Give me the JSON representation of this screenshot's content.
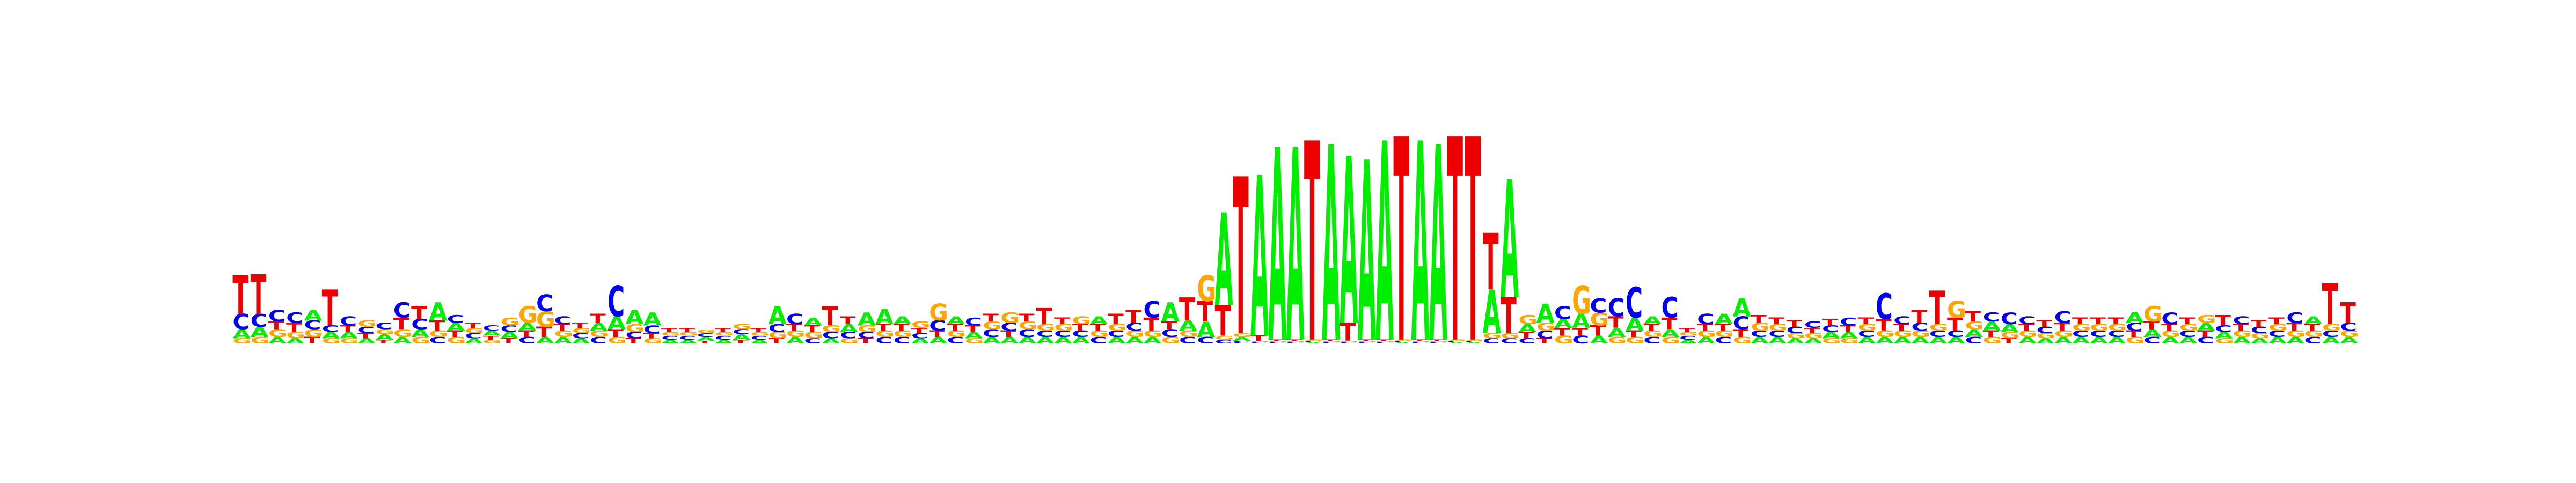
{
  "logo": {
    "colors": {
      "A": "#00ee00",
      "C": "#0000ee",
      "G": "#ffa500",
      "T": "#ee0000"
    },
    "letter_order": [
      "A",
      "C",
      "G",
      "T"
    ],
    "max_bits": 2,
    "positions": [
      {
        "A": 0.07,
        "C": 0.12,
        "G": 0.04,
        "T": 0.3
      },
      {
        "A": 0.08,
        "C": 0.1,
        "G": 0.05,
        "T": 0.31
      },
      {
        "A": 0.05,
        "C": 0.09,
        "G": 0.06,
        "T": 0.06
      },
      {
        "A": 0.04,
        "C": 0.08,
        "G": 0.05,
        "T": 0.07
      },
      {
        "A": 0.08,
        "C": 0.07,
        "G": 0.06,
        "T": 0.05
      },
      {
        "A": 0.05,
        "C": 0.05,
        "G": 0.04,
        "T": 0.28
      },
      {
        "A": 0.05,
        "C": 0.07,
        "G": 0.04,
        "T": 0.05
      },
      {
        "A": 0.04,
        "C": 0.05,
        "G": 0.05,
        "T": 0.04
      },
      {
        "A": 0.04,
        "C": 0.05,
        "G": 0.04,
        "T": 0.03
      },
      {
        "A": 0.05,
        "C": 0.12,
        "G": 0.06,
        "T": 0.09
      },
      {
        "A": 0.06,
        "C": 0.08,
        "G": 0.05,
        "T": 0.1
      },
      {
        "A": 0.14,
        "C": 0.05,
        "G": 0.05,
        "T": 0.08
      },
      {
        "A": 0.06,
        "C": 0.06,
        "G": 0.05,
        "T": 0.05
      },
      {
        "A": 0.04,
        "C": 0.04,
        "G": 0.04,
        "T": 0.04
      },
      {
        "A": 0.04,
        "C": 0.04,
        "G": 0.03,
        "T": 0.03
      },
      {
        "A": 0.05,
        "C": 0.05,
        "G": 0.06,
        "T": 0.04
      },
      {
        "A": 0.06,
        "C": 0.05,
        "G": 0.13,
        "T": 0.05
      },
      {
        "A": 0.05,
        "C": 0.13,
        "G": 0.12,
        "T": 0.08
      },
      {
        "A": 0.05,
        "C": 0.06,
        "G": 0.05,
        "T": 0.05
      },
      {
        "A": 0.04,
        "C": 0.04,
        "G": 0.04,
        "T": 0.04
      },
      {
        "A": 0.06,
        "C": 0.05,
        "G": 0.05,
        "T": 0.07
      },
      {
        "A": 0.1,
        "C": 0.24,
        "G": 0.05,
        "T": 0.06
      },
      {
        "A": 0.11,
        "C": 0.05,
        "G": 0.06,
        "T": 0.04
      },
      {
        "A": 0.1,
        "C": 0.06,
        "G": 0.04,
        "T": 0.04
      },
      {
        "A": 0.03,
        "C": 0.03,
        "G": 0.03,
        "T": 0.03
      },
      {
        "A": 0.03,
        "C": 0.03,
        "G": 0.03,
        "T": 0.03
      },
      {
        "A": 0.03,
        "C": 0.03,
        "G": 0.03,
        "T": 0.02
      },
      {
        "A": 0.03,
        "C": 0.03,
        "G": 0.03,
        "T": 0.03
      },
      {
        "A": 0.04,
        "C": 0.04,
        "G": 0.04,
        "T": 0.03
      },
      {
        "A": 0.03,
        "C": 0.03,
        "G": 0.03,
        "T": 0.03
      },
      {
        "A": 0.14,
        "C": 0.06,
        "G": 0.05,
        "T": 0.04
      },
      {
        "A": 0.05,
        "C": 0.08,
        "G": 0.05,
        "T": 0.05
      },
      {
        "A": 0.06,
        "C": 0.04,
        "G": 0.05,
        "T": 0.05
      },
      {
        "A": 0.04,
        "C": 0.05,
        "G": 0.05,
        "T": 0.15
      },
      {
        "A": 0.06,
        "C": 0.05,
        "G": 0.04,
        "T": 0.06
      },
      {
        "A": 0.1,
        "C": 0.05,
        "G": 0.05,
        "T": 0.04
      },
      {
        "A": 0.12,
        "C": 0.05,
        "G": 0.05,
        "T": 0.05
      },
      {
        "A": 0.06,
        "C": 0.05,
        "G": 0.05,
        "T": 0.05
      },
      {
        "A": 0.04,
        "C": 0.04,
        "G": 0.05,
        "T": 0.04
      },
      {
        "A": 0.05,
        "C": 0.08,
        "G": 0.13,
        "T": 0.05
      },
      {
        "A": 0.06,
        "C": 0.05,
        "G": 0.05,
        "T": 0.05
      },
      {
        "A": 0.05,
        "C": 0.06,
        "G": 0.04,
        "T": 0.05
      },
      {
        "A": 0.05,
        "C": 0.06,
        "G": 0.06,
        "T": 0.06
      },
      {
        "A": 0.05,
        "C": 0.06,
        "G": 0.08,
        "T": 0.05
      },
      {
        "A": 0.05,
        "C": 0.06,
        "G": 0.06,
        "T": 0.06
      },
      {
        "A": 0.05,
        "C": 0.05,
        "G": 0.05,
        "T": 0.13
      },
      {
        "A": 0.05,
        "C": 0.05,
        "G": 0.05,
        "T": 0.05
      },
      {
        "A": 0.05,
        "C": 0.05,
        "G": 0.06,
        "T": 0.05
      },
      {
        "A": 0.06,
        "C": 0.05,
        "G": 0.05,
        "T": 0.05
      },
      {
        "A": 0.05,
        "C": 0.05,
        "G": 0.05,
        "T": 0.08
      },
      {
        "A": 0.05,
        "C": 0.06,
        "G": 0.05,
        "T": 0.1
      },
      {
        "A": 0.05,
        "C": 0.13,
        "G": 0.05,
        "T": 0.1
      },
      {
        "A": 0.15,
        "C": 0.06,
        "G": 0.05,
        "T": 0.06
      },
      {
        "A": 0.08,
        "C": 0.05,
        "G": 0.05,
        "T": 0.18
      },
      {
        "A": 0.12,
        "C": 0.05,
        "G": 0.2,
        "T": 0.16
      },
      {
        "A": 0.72,
        "C": 0.03,
        "G": 0.03,
        "T": 0.24
      },
      {
        "A": 0.03,
        "C": 0.02,
        "G": 0.03,
        "T": 1.22
      },
      {
        "A": 1.25,
        "C": 0.01,
        "G": 0.01,
        "T": 0.04
      },
      {
        "A": 1.5,
        "C": 0.01,
        "G": 0.01,
        "T": 0.01
      },
      {
        "A": 1.5,
        "C": 0.01,
        "G": 0.01,
        "T": 0.01
      },
      {
        "A": 0.01,
        "C": 0.01,
        "G": 0.01,
        "T": 1.55
      },
      {
        "A": 1.52,
        "C": 0.01,
        "G": 0.01,
        "T": 0.01
      },
      {
        "A": 1.3,
        "C": 0.01,
        "G": 0.01,
        "T": 0.14
      },
      {
        "A": 1.4,
        "C": 0.01,
        "G": 0.01,
        "T": 0.01
      },
      {
        "A": 1.55,
        "C": 0.01,
        "G": 0.01,
        "T": 0.01
      },
      {
        "A": 0.01,
        "C": 0.01,
        "G": 0.01,
        "T": 1.58
      },
      {
        "A": 1.55,
        "C": 0.01,
        "G": 0.01,
        "T": 0.01
      },
      {
        "A": 1.52,
        "C": 0.01,
        "G": 0.01,
        "T": 0.01
      },
      {
        "A": 0.01,
        "C": 0.01,
        "G": 0.01,
        "T": 1.58
      },
      {
        "A": 0.01,
        "C": 0.01,
        "G": 0.01,
        "T": 1.58
      },
      {
        "A": 0.34,
        "C": 0.04,
        "G": 0.04,
        "T": 0.44
      },
      {
        "A": 0.92,
        "C": 0.04,
        "G": 0.04,
        "T": 0.28
      },
      {
        "A": 0.06,
        "C": 0.04,
        "G": 0.07,
        "T": 0.05
      },
      {
        "A": 0.15,
        "C": 0.06,
        "G": 0.06,
        "T": 0.04
      },
      {
        "A": 0.07,
        "C": 0.1,
        "G": 0.06,
        "T": 0.06
      },
      {
        "A": 0.11,
        "C": 0.06,
        "G": 0.22,
        "T": 0.06
      },
      {
        "A": 0.06,
        "C": 0.11,
        "G": 0.1,
        "T": 0.08
      },
      {
        "A": 0.07,
        "C": 0.14,
        "G": 0.05,
        "T": 0.09
      },
      {
        "A": 0.1,
        "C": 0.24,
        "G": 0.05,
        "T": 0.05
      },
      {
        "A": 0.06,
        "C": 0.05,
        "G": 0.05,
        "T": 0.05
      },
      {
        "A": 0.06,
        "C": 0.16,
        "G": 0.05,
        "T": 0.09
      },
      {
        "A": 0.03,
        "C": 0.03,
        "G": 0.03,
        "T": 0.03
      },
      {
        "A": 0.05,
        "C": 0.08,
        "G": 0.05,
        "T": 0.05
      },
      {
        "A": 0.08,
        "C": 0.05,
        "G": 0.05,
        "T": 0.05
      },
      {
        "A": 0.14,
        "C": 0.1,
        "G": 0.05,
        "T": 0.06
      },
      {
        "A": 0.05,
        "C": 0.05,
        "G": 0.06,
        "T": 0.06
      },
      {
        "A": 0.05,
        "C": 0.05,
        "G": 0.05,
        "T": 0.05
      },
      {
        "A": 0.04,
        "C": 0.05,
        "G": 0.04,
        "T": 0.05
      },
      {
        "A": 0.04,
        "C": 0.05,
        "G": 0.04,
        "T": 0.04
      },
      {
        "A": 0.05,
        "C": 0.05,
        "G": 0.04,
        "T": 0.05
      },
      {
        "A": 0.05,
        "C": 0.06,
        "G": 0.04,
        "T": 0.05
      },
      {
        "A": 0.05,
        "C": 0.05,
        "G": 0.05,
        "T": 0.05
      },
      {
        "A": 0.05,
        "C": 0.2,
        "G": 0.05,
        "T": 0.09
      },
      {
        "A": 0.05,
        "C": 0.06,
        "G": 0.05,
        "T": 0.05
      },
      {
        "A": 0.05,
        "C": 0.06,
        "G": 0.05,
        "T": 0.1
      },
      {
        "A": 0.05,
        "C": 0.05,
        "G": 0.05,
        "T": 0.26
      },
      {
        "A": 0.05,
        "C": 0.05,
        "G": 0.13,
        "T": 0.1
      },
      {
        "A": 0.06,
        "C": 0.05,
        "G": 0.06,
        "T": 0.08
      },
      {
        "A": 0.07,
        "C": 0.07,
        "G": 0.05,
        "T": 0.05
      },
      {
        "A": 0.06,
        "C": 0.09,
        "G": 0.05,
        "T": 0.04
      },
      {
        "A": 0.05,
        "C": 0.06,
        "G": 0.05,
        "T": 0.05
      },
      {
        "A": 0.04,
        "C": 0.05,
        "G": 0.04,
        "T": 0.05
      },
      {
        "A": 0.05,
        "C": 0.09,
        "G": 0.05,
        "T": 0.06
      },
      {
        "A": 0.05,
        "C": 0.05,
        "G": 0.05,
        "T": 0.05
      },
      {
        "A": 0.05,
        "C": 0.05,
        "G": 0.05,
        "T": 0.05
      },
      {
        "A": 0.05,
        "C": 0.05,
        "G": 0.05,
        "T": 0.05
      },
      {
        "A": 0.08,
        "C": 0.06,
        "G": 0.05,
        "T": 0.05
      },
      {
        "A": 0.06,
        "C": 0.05,
        "G": 0.12,
        "T": 0.06
      },
      {
        "A": 0.05,
        "C": 0.09,
        "G": 0.05,
        "T": 0.05
      },
      {
        "A": 0.05,
        "C": 0.05,
        "G": 0.05,
        "T": 0.05
      },
      {
        "A": 0.06,
        "C": 0.05,
        "G": 0.06,
        "T": 0.05
      },
      {
        "A": 0.05,
        "C": 0.05,
        "G": 0.04,
        "T": 0.08
      },
      {
        "A": 0.05,
        "C": 0.06,
        "G": 0.05,
        "T": 0.05
      },
      {
        "A": 0.04,
        "C": 0.05,
        "G": 0.04,
        "T": 0.05
      },
      {
        "A": 0.05,
        "C": 0.05,
        "G": 0.05,
        "T": 0.05
      },
      {
        "A": 0.05,
        "C": 0.08,
        "G": 0.05,
        "T": 0.06
      },
      {
        "A": 0.06,
        "C": 0.05,
        "G": 0.05,
        "T": 0.05
      },
      {
        "A": 0.05,
        "C": 0.05,
        "G": 0.05,
        "T": 0.32
      },
      {
        "A": 0.05,
        "C": 0.06,
        "G": 0.05,
        "T": 0.16
      }
    ]
  }
}
